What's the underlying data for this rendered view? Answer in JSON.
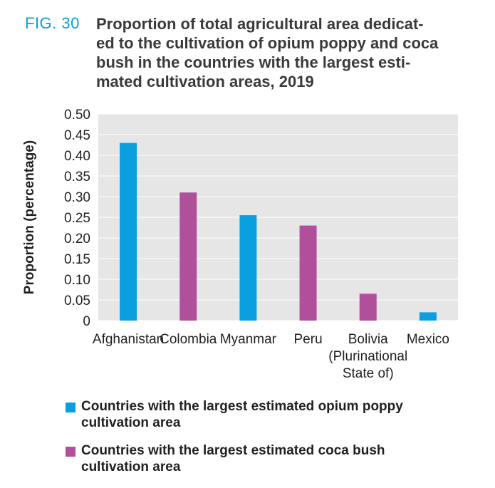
{
  "figure": {
    "label": "FIG. 30",
    "title_lines": [
      "Proportion of total agricultural area dedicat-",
      "ed to the cultivation of opium poppy and coca",
      "bush in the countries with the largest esti-",
      "mated cultivation areas, 2019"
    ]
  },
  "legend": [
    {
      "lines": [
        "Countries with the largest estimated opium poppy",
        "cultivation area"
      ],
      "color": "#0aa0e0"
    },
    {
      "lines": [
        "Countries with the largest estimated coca bush",
        "cultivation area"
      ],
      "color": "#b0509a"
    }
  ],
  "chart_data": {
    "type": "bar",
    "categories": [
      [
        "Afghanistan"
      ],
      [
        "Colombia"
      ],
      [
        "Myanmar"
      ],
      [
        "Peru"
      ],
      [
        "Bolivia",
        "(Plurinational",
        "State of)"
      ],
      [
        "Mexico"
      ]
    ],
    "values": [
      0.43,
      0.31,
      0.255,
      0.23,
      0.065,
      0.02
    ],
    "bar_series": [
      0,
      1,
      0,
      1,
      1,
      0
    ],
    "series_colors": [
      "#0aa0e0",
      "#b0509a"
    ],
    "ylabel": "Proportion (percentage)",
    "ylim": [
      0,
      0.5
    ],
    "yticks": [
      "0",
      "0.05",
      "0.10",
      "0.15",
      "0.20",
      "0.25",
      "0.30",
      "0.35",
      "0.40",
      "0.45",
      "0.50"
    ],
    "plot_background": "#e6e6e7",
    "grid": true
  }
}
